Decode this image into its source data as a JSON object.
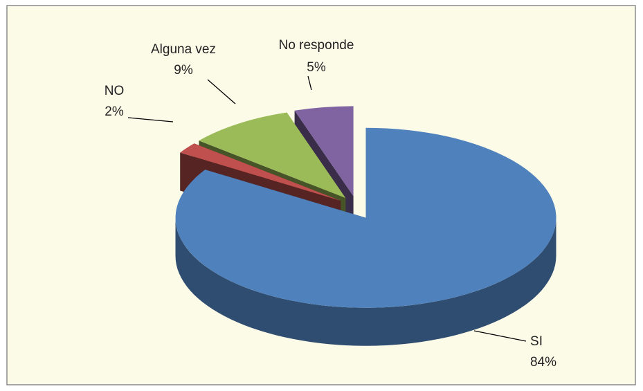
{
  "chart_data": {
    "type": "pie",
    "categories": [
      "SI",
      "NO",
      "Alguna vez",
      "No responde"
    ],
    "values": [
      84,
      2,
      9,
      5
    ],
    "value_labels": [
      "84%",
      "2%",
      "9%",
      "5%"
    ],
    "colors": [
      "#4f81bd",
      "#c0504d",
      "#9bbb59",
      "#8064a2"
    ]
  }
}
